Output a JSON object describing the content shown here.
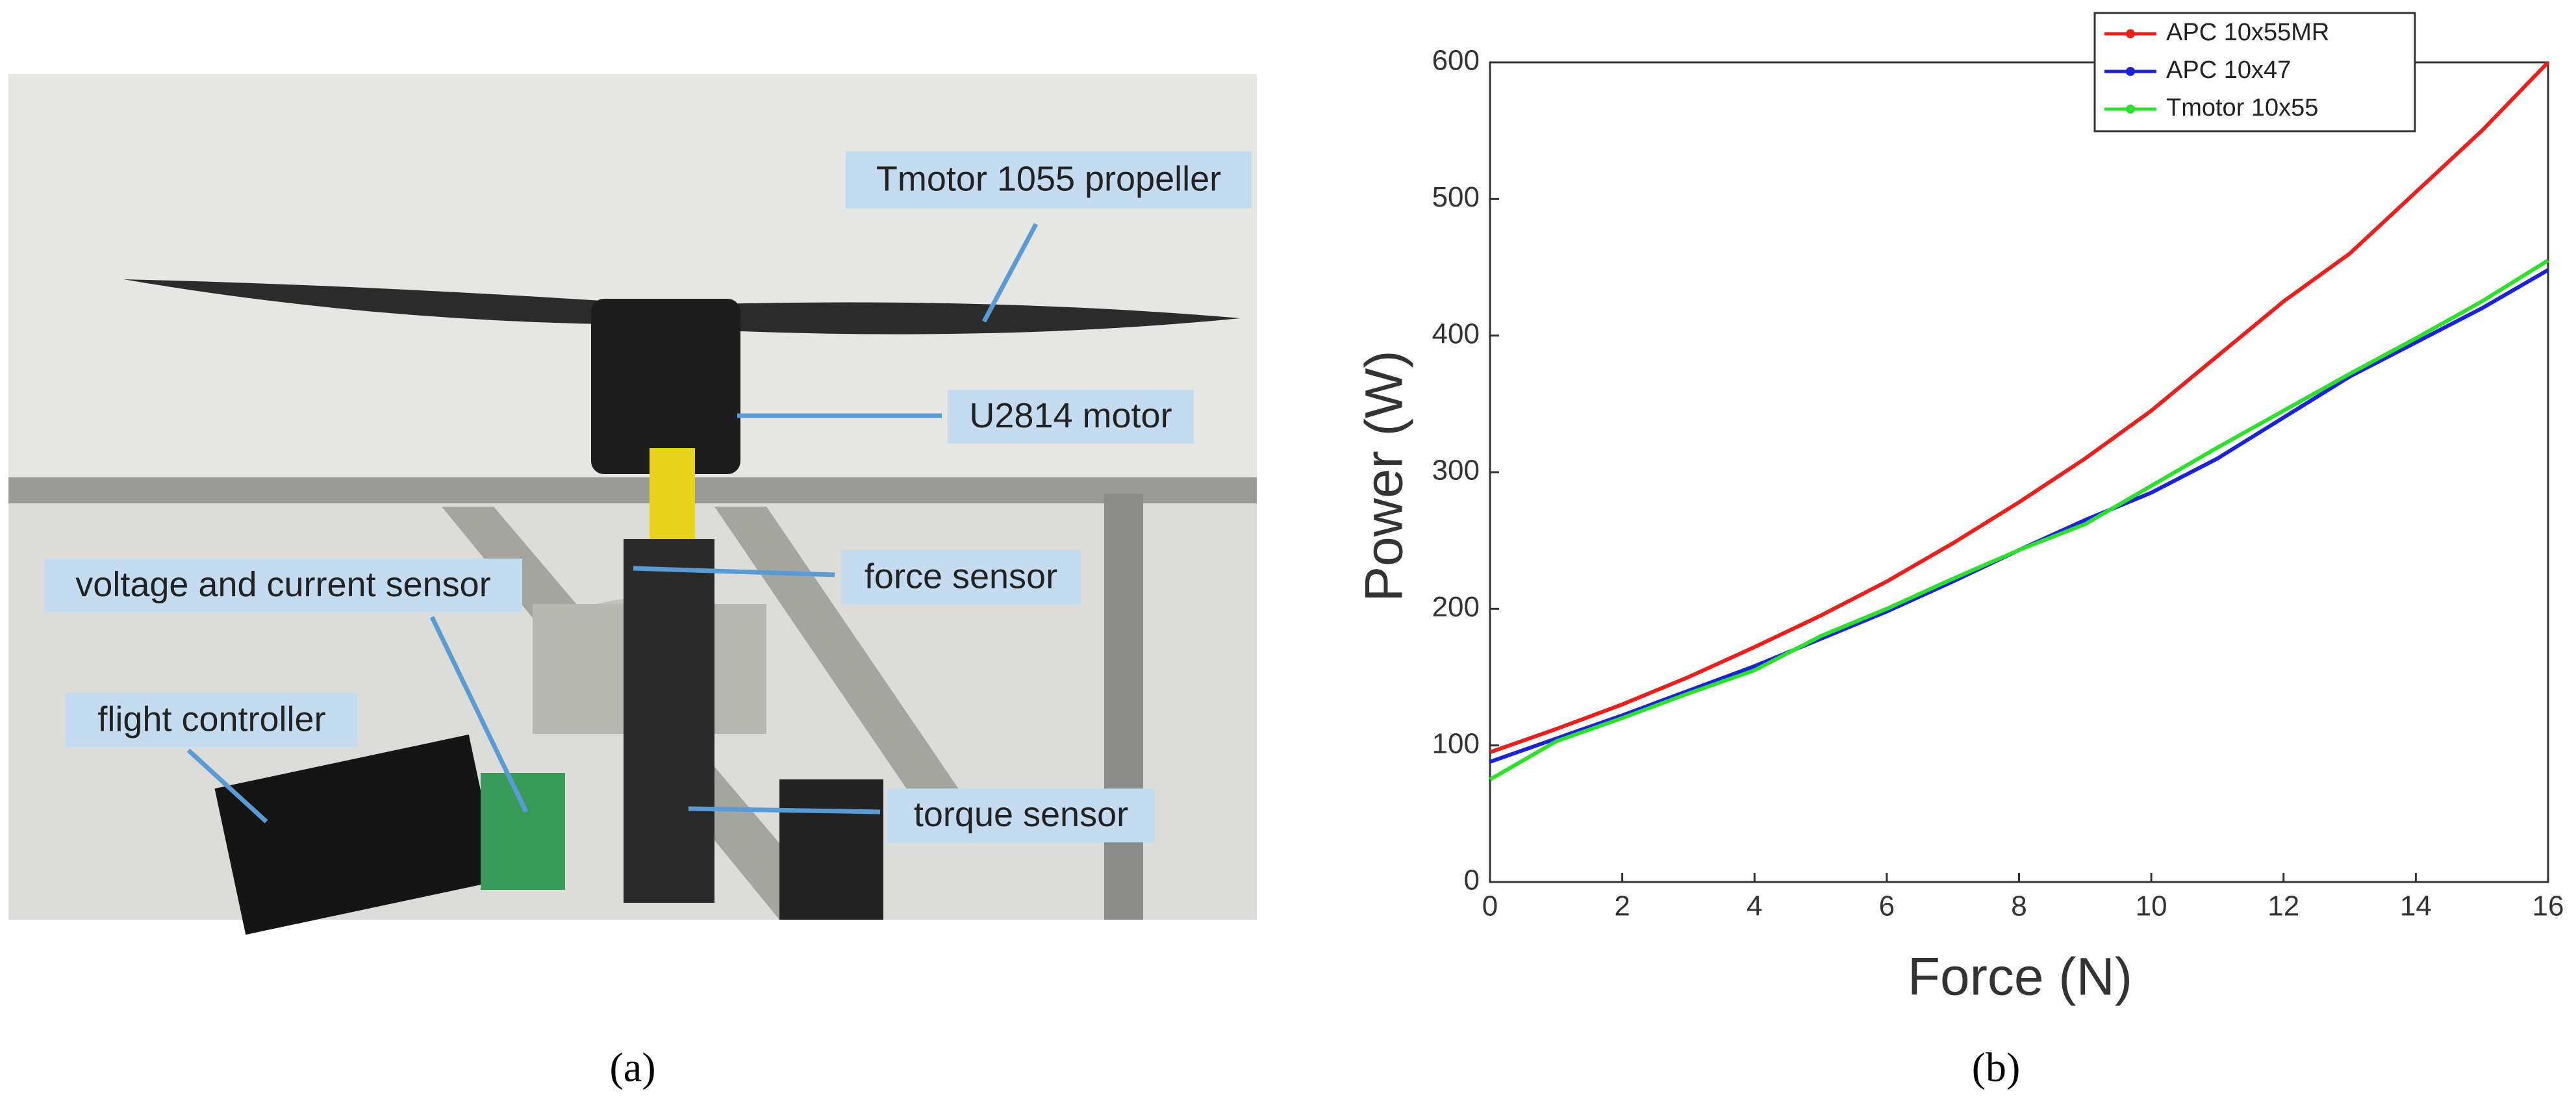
{
  "photo": {
    "labels": [
      "Tmotor 1055 propeller",
      "U2814 motor",
      "force sensor",
      "voltage and current sensor",
      "flight controller",
      "torque sensor"
    ],
    "panel": "(a)"
  },
  "chart_data": {
    "type": "line",
    "panel": "(b)",
    "x_label": "Force (N)",
    "y_label": "Power (W)",
    "x": [
      0,
      1,
      2,
      3,
      4,
      5,
      6,
      7,
      8,
      9,
      10,
      11,
      12,
      13,
      14,
      15,
      16
    ],
    "series": [
      {
        "name": "APC 10x55MR",
        "color": "#e8211f",
        "values": [
          95,
          112,
          130,
          150,
          172,
          195,
          220,
          248,
          278,
          310,
          345,
          385,
          425,
          460,
          505,
          550,
          600
        ]
      },
      {
        "name": "APC 10x47",
        "color": "#1c22d6",
        "values": [
          88,
          105,
          122,
          140,
          158,
          178,
          198,
          220,
          243,
          265,
          285,
          310,
          340,
          370,
          395,
          420,
          448
        ]
      },
      {
        "name": "Tmotor 10x55",
        "color": "#2ee02e",
        "values": [
          75,
          103,
          120,
          138,
          155,
          180,
          200,
          222,
          243,
          262,
          290,
          318,
          345,
          372,
          398,
          425,
          455
        ]
      }
    ],
    "xlim": [
      0,
      16
    ],
    "xticks": [
      0,
      2,
      4,
      6,
      8,
      10,
      12,
      14,
      16
    ],
    "ylim": [
      0,
      600
    ],
    "yticks": [
      0,
      100,
      200,
      300,
      400,
      500,
      600
    ],
    "legend": "upper right",
    "grid": false
  }
}
